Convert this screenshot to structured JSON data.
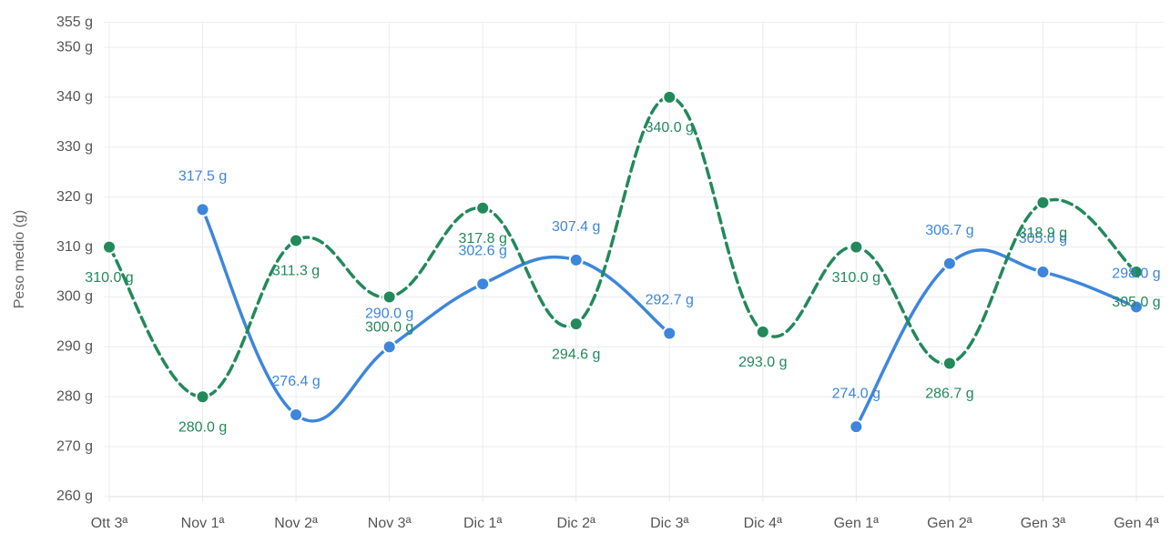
{
  "chart_data": {
    "type": "line",
    "y_label": "Peso medio (g)",
    "categories": [
      "Ott 3ª",
      "Nov 1ª",
      "Nov 2ª",
      "Nov 3ª",
      "Dic 1ª",
      "Dic 2ª",
      "Dic 3ª",
      "Dic 4ª",
      "Gen 1ª",
      "Gen 2ª",
      "Gen 3ª",
      "Gen 4ª"
    ],
    "series": [
      {
        "color": "#3d86dc",
        "line": "solid",
        "values": [
          null,
          317.5,
          276.4,
          290.0,
          302.6,
          307.4,
          292.7,
          null,
          274.0,
          306.7,
          305.0,
          298.0
        ],
        "value_labels": [
          null,
          "317.5 g",
          "276.4 g",
          "290.0 g",
          "302.6 g",
          "307.4 g",
          "292.7 g",
          null,
          "274.0 g",
          "306.7 g",
          "305.0 g",
          "298.0 g"
        ]
      },
      {
        "color": "#22895b",
        "line": "dashed",
        "values": [
          310.0,
          280.0,
          311.3,
          300.0,
          317.8,
          294.6,
          340.0,
          293.0,
          310.0,
          286.7,
          318.9,
          305.0
        ],
        "value_labels": [
          "310.0 g",
          "280.0 g",
          "311.3 g",
          "300.0 g",
          "317.8 g",
          "294.6 g",
          "340.0 g",
          "293.0 g",
          "310.0 g",
          "286.7 g",
          "318.9 g",
          "305.0 g"
        ]
      }
    ],
    "ylim": [
      260,
      355
    ],
    "yticks": [
      {
        "value": 260,
        "label": "260 g"
      },
      {
        "value": 270,
        "label": "270 g"
      },
      {
        "value": 280,
        "label": "280 g"
      },
      {
        "value": 290,
        "label": "290 g"
      },
      {
        "value": 300,
        "label": "300 g"
      },
      {
        "value": 310,
        "label": "310 g"
      },
      {
        "value": 320,
        "label": "320 g"
      },
      {
        "value": 330,
        "label": "330 g"
      },
      {
        "value": 340,
        "label": "340 g"
      },
      {
        "value": 350,
        "label": "350 g"
      },
      {
        "value": 355,
        "label": "355 g"
      }
    ],
    "grid": true
  }
}
